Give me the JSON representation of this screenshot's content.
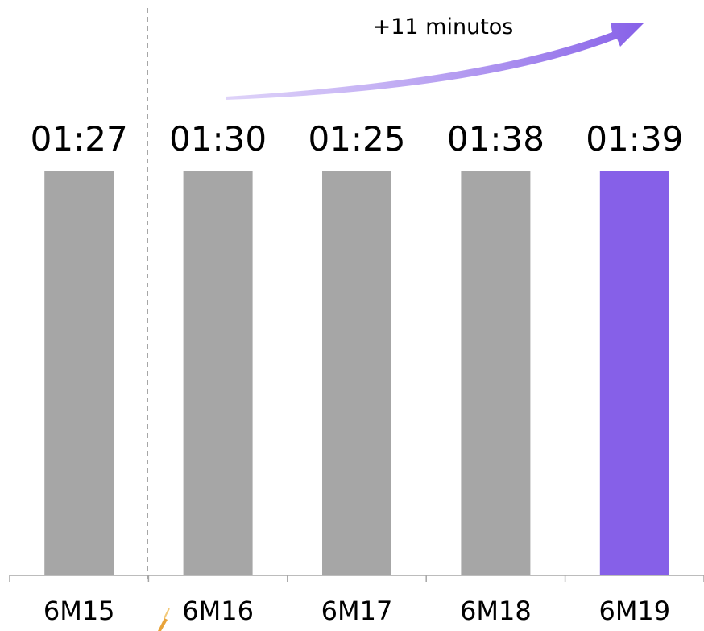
{
  "chart_data": {
    "type": "bar",
    "categories": [
      "6M15",
      "6M16",
      "6M17",
      "6M18",
      "6M19"
    ],
    "values": [
      "01:27",
      "01:30",
      "01:25",
      "01:38",
      "01:39"
    ],
    "data_labels": [
      "01:27",
      "01:30",
      "01:25",
      "01:38",
      "01:39"
    ],
    "title": "",
    "xlabel": "",
    "ylabel": "",
    "grid": false,
    "legend": "none",
    "highlight_category": "6M19",
    "annotation": "+11 minutos",
    "colors": {
      "bar": "#a6a6a6",
      "highlight": "#8660e8",
      "arrow": "#8660e8",
      "axis": "#a6a6a6",
      "divider": "#a6a6a6"
    }
  }
}
